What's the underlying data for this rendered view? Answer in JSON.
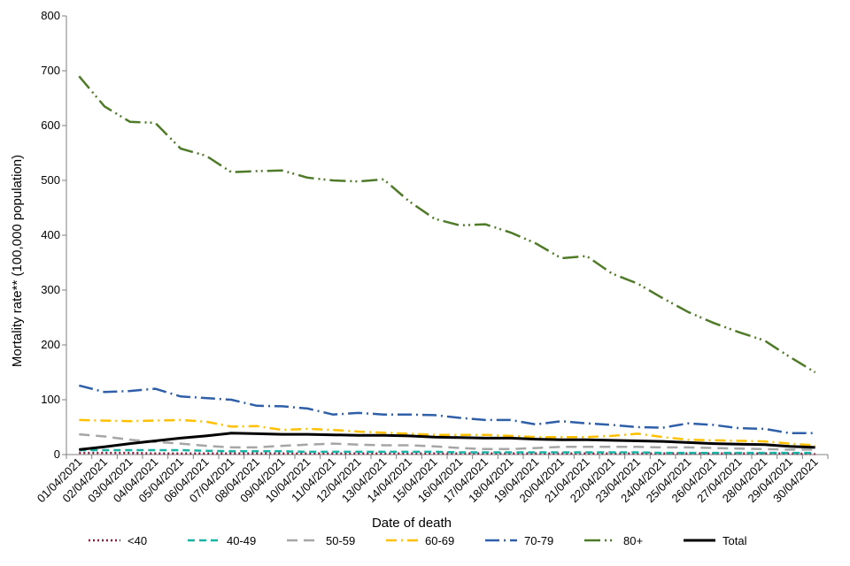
{
  "chart_data": {
    "type": "line",
    "title": "",
    "xlabel": "Date of death",
    "ylabel": "Mortality rate** (100,000 population)",
    "ylim": [
      0,
      800
    ],
    "yticks": [
      0,
      100,
      200,
      300,
      400,
      500,
      600,
      700,
      800
    ],
    "grid": false,
    "legend_position": "bottom",
    "categories": [
      "01/04/2021",
      "02/04/2021",
      "03/04/2021",
      "04/04/2021",
      "05/04/2021",
      "06/04/2021",
      "07/04/2021",
      "08/04/2021",
      "09/04/2021",
      "10/04/2021",
      "11/04/2021",
      "12/04/2021",
      "13/04/2021",
      "14/04/2021",
      "15/04/2021",
      "16/04/2021",
      "17/04/2021",
      "18/04/2021",
      "19/04/2021",
      "20/04/2021",
      "21/04/2021",
      "22/04/2021",
      "23/04/2021",
      "24/04/2021",
      "25/04/2021",
      "26/04/2021",
      "27/04/2021",
      "28/04/2021",
      "29/04/2021",
      "30/04/2021"
    ],
    "series": [
      {
        "name": "<40",
        "color": "#8b1a3c",
        "dash": "2,3",
        "width": 2.5,
        "values": [
          3,
          3,
          3,
          2,
          2,
          2,
          2,
          2,
          2,
          2,
          2,
          2,
          2,
          2,
          2,
          2,
          2,
          2,
          2,
          2,
          2,
          2,
          2,
          2,
          2,
          2,
          2,
          2,
          2,
          1
        ]
      },
      {
        "name": "40-49",
        "color": "#19b3a6",
        "dash": "8,5",
        "width": 2.5,
        "values": [
          8,
          8,
          8,
          8,
          8,
          7,
          6,
          6,
          6,
          5,
          5,
          5,
          5,
          5,
          5,
          4,
          4,
          4,
          4,
          4,
          4,
          4,
          4,
          3,
          3,
          3,
          3,
          3,
          3,
          3
        ]
      },
      {
        "name": "50-59",
        "color": "#a6a6a6",
        "dash": "12,7",
        "width": 2.5,
        "values": [
          37,
          33,
          27,
          23,
          20,
          16,
          13,
          13,
          16,
          18,
          20,
          18,
          17,
          17,
          15,
          12,
          10,
          10,
          12,
          14,
          14,
          14,
          14,
          13,
          13,
          12,
          11,
          10,
          9,
          9
        ]
      },
      {
        "name": "60-69",
        "color": "#ffc000",
        "dash": "12,5,2,5",
        "width": 2.5,
        "values": [
          63,
          62,
          61,
          62,
          63,
          60,
          51,
          52,
          45,
          47,
          45,
          42,
          40,
          38,
          36,
          36,
          36,
          34,
          32,
          32,
          32,
          34,
          38,
          32,
          27,
          26,
          25,
          24,
          20,
          17
        ]
      },
      {
        "name": "70-79",
        "color": "#2e5fa8",
        "dash": "16,5,2,5",
        "width": 2.5,
        "values": [
          126,
          114,
          116,
          120,
          106,
          103,
          100,
          89,
          88,
          84,
          73,
          76,
          73,
          73,
          72,
          67,
          63,
          63,
          55,
          61,
          57,
          54,
          50,
          49,
          57,
          54,
          48,
          47,
          39,
          39
        ]
      },
      {
        "name": "80+",
        "color": "#4f7a28",
        "dash": "18,5,2,4,2,5",
        "width": 2.5,
        "values": [
          690,
          635,
          607,
          605,
          558,
          545,
          515,
          517,
          518,
          505,
          500,
          498,
          502,
          462,
          430,
          418,
          420,
          405,
          385,
          358,
          362,
          330,
          312,
          285,
          260,
          240,
          223,
          208,
          178,
          150
        ]
      },
      {
        "name": "Total",
        "color": "#000000",
        "dash": "",
        "width": 3,
        "values": [
          9,
          14,
          20,
          25,
          30,
          34,
          39,
          38,
          37,
          37,
          36,
          35,
          35,
          34,
          32,
          31,
          30,
          30,
          28,
          27,
          27,
          26,
          25,
          24,
          22,
          20,
          19,
          18,
          15,
          13
        ]
      }
    ]
  }
}
